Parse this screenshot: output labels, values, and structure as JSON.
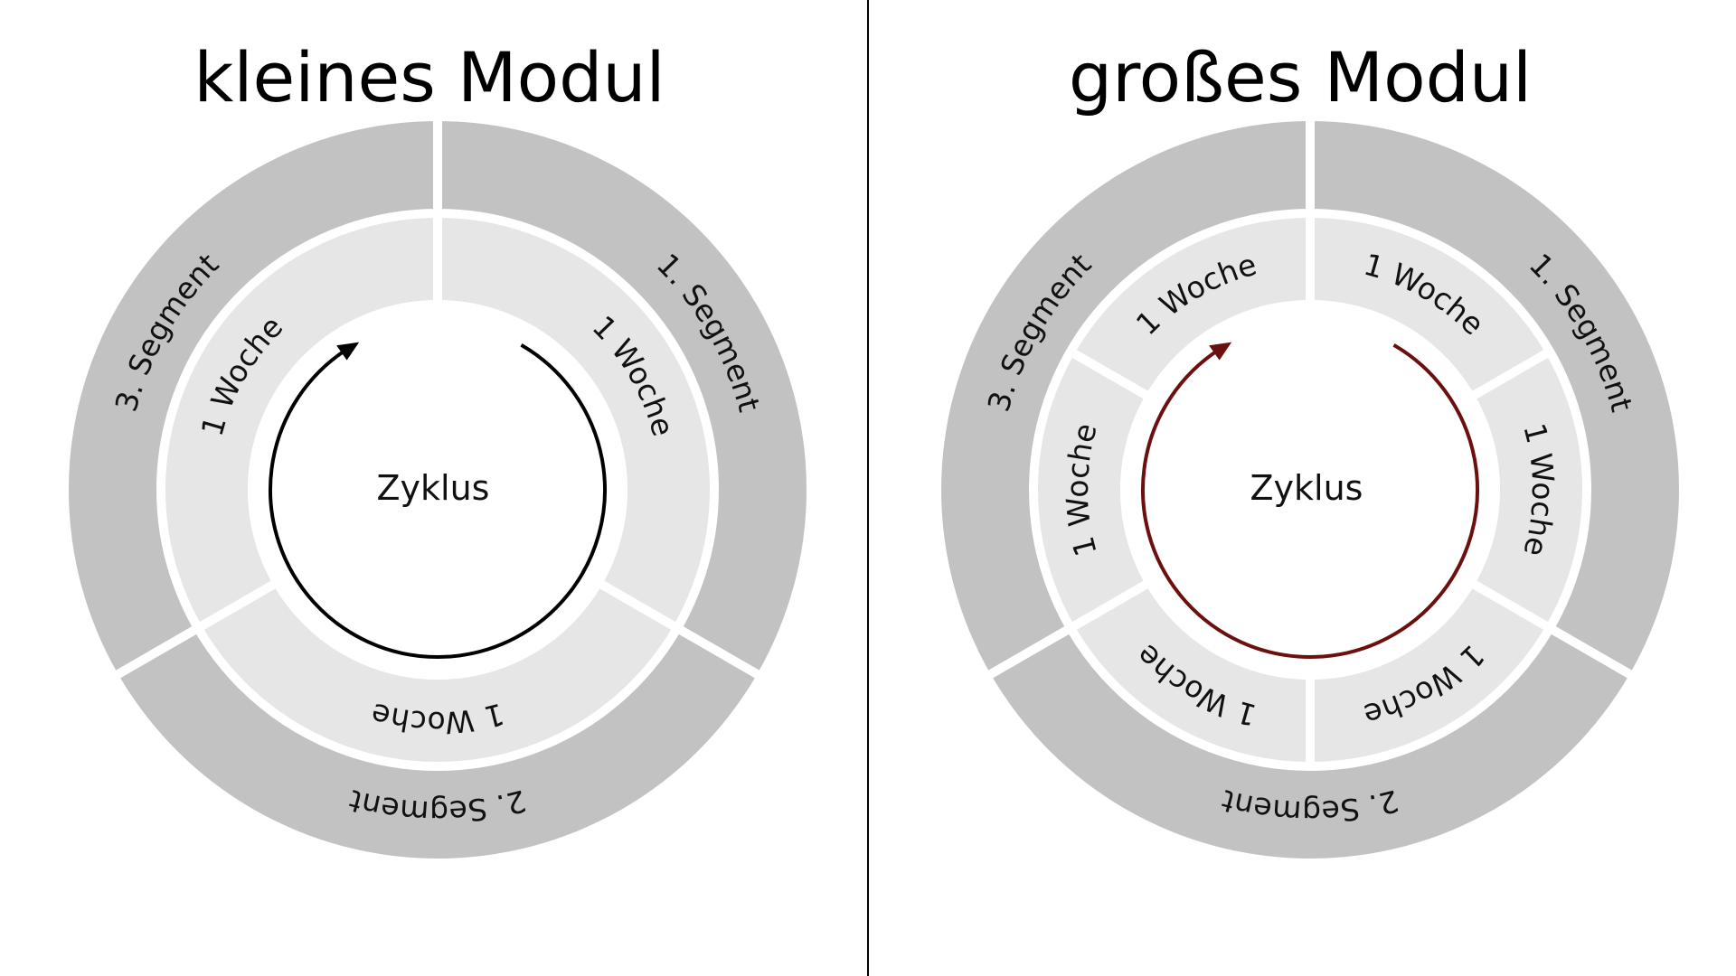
{
  "colors": {
    "background": "#ffffff",
    "outer_ring": "#c2c2c2",
    "inner_ring": "#e6e6e6",
    "separator": "#ffffff",
    "divider_line": "#000000",
    "arrow_small": "#000000",
    "arrow_large": "#6b0f0f"
  },
  "modules": [
    {
      "title": "kleines Modul",
      "center_label": "Zyklus",
      "arrow_color": "#000000",
      "segments": [
        "1. Segment",
        "2. Segment",
        "3. Segment"
      ],
      "weeks": [
        "1 Woche",
        "1 Woche",
        "1 Woche"
      ]
    },
    {
      "title": "großes Modul",
      "center_label": "Zyklus",
      "arrow_color": "#6b0f0f",
      "segments": [
        "1. Segment",
        "2. Segment",
        "3. Segment"
      ],
      "weeks": [
        "1 Woche",
        "1 Woche",
        "1 Woche",
        "1 Woche",
        "1 Woche",
        "1 Woche"
      ]
    }
  ]
}
